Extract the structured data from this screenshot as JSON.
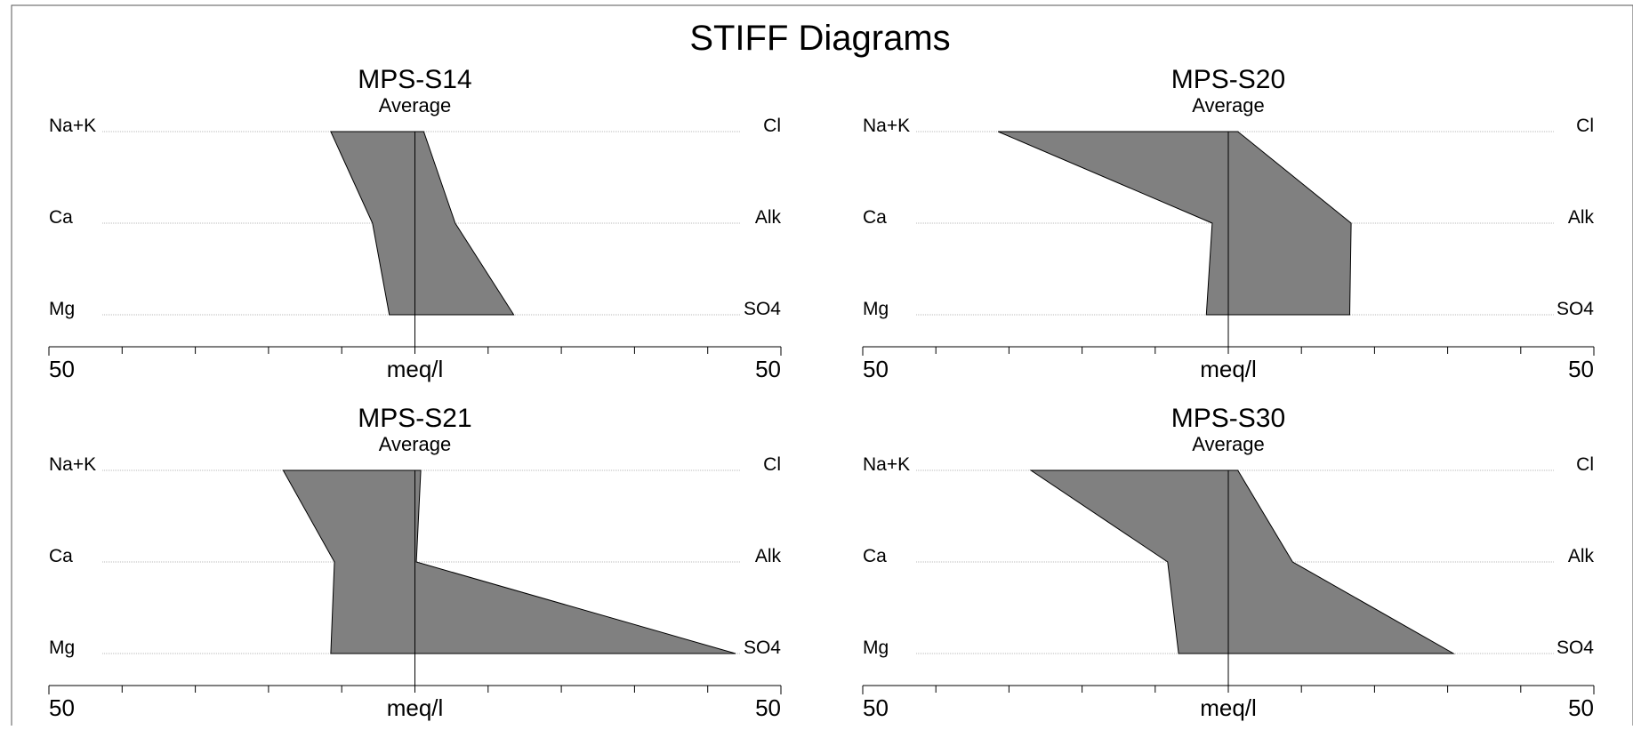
{
  "title": "STIFF Diagrams",
  "colors": {
    "polygon_fill": "#808080",
    "polygon_stroke": "#000000",
    "gridline": "#bbbbbb",
    "axis": "#000000",
    "frame": "#555555"
  },
  "chart_data": [
    {
      "type": "area",
      "title": "MPS-S14",
      "subtitle": "Average",
      "cation_labels": [
        "Na+K",
        "Ca",
        "Mg"
      ],
      "anion_labels": [
        "Cl",
        "Alk",
        "SO4"
      ],
      "cations": [
        11.5,
        5.8,
        3.5
      ],
      "anions": [
        1.2,
        5.5,
        13.5
      ],
      "xlabel": "meq/l",
      "xlim_left": 50,
      "xlim_right": 50,
      "tick_labels": [
        "50",
        "50"
      ],
      "tick_step": 10
    },
    {
      "type": "area",
      "title": "MPS-S20",
      "subtitle": "Average",
      "cation_labels": [
        "Na+K",
        "Ca",
        "Mg"
      ],
      "anion_labels": [
        "Cl",
        "Alk",
        "SO4"
      ],
      "cations": [
        31.5,
        2.2,
        3.0
      ],
      "anions": [
        1.3,
        16.8,
        16.6
      ],
      "xlabel": "meq/l",
      "xlim_left": 50,
      "xlim_right": 50,
      "tick_labels": [
        "50",
        "50"
      ],
      "tick_step": 10
    },
    {
      "type": "area",
      "title": "MPS-S21",
      "subtitle": "Average",
      "cation_labels": [
        "Na+K",
        "Ca",
        "Mg"
      ],
      "anion_labels": [
        "Cl",
        "Alk",
        "SO4"
      ],
      "cations": [
        18.0,
        11.0,
        11.5
      ],
      "anions": [
        0.8,
        0.2,
        43.8
      ],
      "xlabel": "meq/l",
      "xlim_left": 50,
      "xlim_right": 50,
      "tick_labels": [
        "50",
        "50"
      ],
      "tick_step": 10
    },
    {
      "type": "area",
      "title": "MPS-S30",
      "subtitle": "Average",
      "cation_labels": [
        "Na+K",
        "Ca",
        "Mg"
      ],
      "anion_labels": [
        "Cl",
        "Alk",
        "SO4"
      ],
      "cations": [
        27.0,
        8.3,
        6.8
      ],
      "anions": [
        1.3,
        8.8,
        30.8
      ],
      "xlabel": "meq/l",
      "xlim_left": 50,
      "xlim_right": 50,
      "tick_labels": [
        "50",
        "50"
      ],
      "tick_step": 10
    }
  ]
}
